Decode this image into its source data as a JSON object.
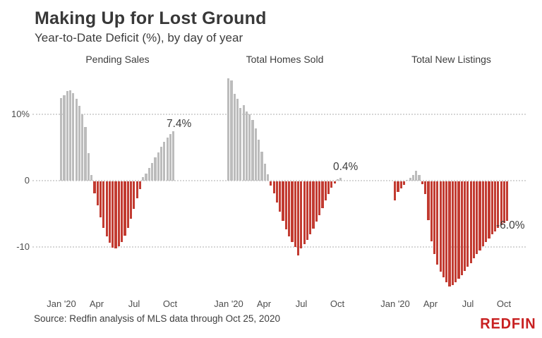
{
  "header": {
    "title": "Making Up for Lost Ground",
    "subtitle": "Year-to-Date Deficit (%), by day of year"
  },
  "colors": {
    "positive_bar": "#bcbcbc",
    "negative_bar": "#c23b31",
    "brand_red": "#c82021",
    "gridline": "#d6d6d6"
  },
  "axes": {
    "y_tick_labels": [
      "10%",
      "0",
      "-10"
    ],
    "y_tick_values": [
      10,
      0,
      -10
    ],
    "x_tick_labels": [
      "Jan '20",
      "Apr",
      "Jul",
      "Oct"
    ],
    "grid": "dotted horizontal lines at 10, 0, -10"
  },
  "chart_data": [
    {
      "type": "bar",
      "title": "Pending Sales",
      "end_label": "7.4%",
      "x_range": "Jan 2020 - Oct 25, 2020",
      "ylim": [
        -17,
        18
      ],
      "values": [
        12.4,
        12.9,
        13.5,
        13.6,
        13.2,
        12.3,
        11.3,
        10.0,
        8.1,
        4.2,
        0.8,
        -1.8,
        -3.6,
        -5.4,
        -7.0,
        -8.3,
        -9.3,
        -10.0,
        -10.1,
        -9.8,
        -9.1,
        -8.2,
        -7.0,
        -5.6,
        -4.1,
        -2.6,
        -1.2,
        0.5,
        1.1,
        1.9,
        2.7,
        3.5,
        4.3,
        5.1,
        5.9,
        6.5,
        7.0,
        7.4
      ]
    },
    {
      "type": "bar",
      "title": "Total Homes Sold",
      "end_label": "0.4%",
      "x_range": "Jan 2020 - Oct 25, 2020",
      "ylim": [
        -17,
        18
      ],
      "values": [
        15.4,
        15.1,
        13.1,
        12.3,
        11.0,
        11.4,
        10.4,
        10.0,
        9.2,
        7.9,
        6.2,
        4.4,
        2.6,
        1.0,
        -0.6,
        -1.8,
        -3.2,
        -4.6,
        -6.0,
        -7.2,
        -8.3,
        -9.2,
        -9.9,
        -11.2,
        -10.1,
        -9.5,
        -8.8,
        -8.0,
        -7.1,
        -6.1,
        -5.1,
        -4.0,
        -2.9,
        -1.9,
        -1.0,
        -0.3,
        0.2,
        0.4
      ]
    },
    {
      "type": "bar",
      "title": "Total New Listings",
      "end_label": "-6.0%",
      "x_range": "Jan 2020 - Oct 25, 2020",
      "ylim": [
        -17,
        18
      ],
      "values": [
        -2.9,
        -1.6,
        -1.1,
        -0.5,
        0.1,
        0.4,
        0.8,
        1.5,
        0.9,
        -0.4,
        -1.9,
        -5.9,
        -9.0,
        -11.0,
        -12.5,
        -13.6,
        -14.5,
        -15.2,
        -15.8,
        -15.6,
        -15.2,
        -14.7,
        -14.1,
        -13.5,
        -12.9,
        -12.3,
        -11.6,
        -11.0,
        -10.4,
        -9.8,
        -9.2,
        -8.6,
        -8.0,
        -7.5,
        -7.0,
        -6.6,
        -6.3,
        -6.0
      ]
    }
  ],
  "footer": {
    "source": "Source: Redfin analysis of MLS data through Oct 25, 2020",
    "brand": "REDFIN"
  }
}
